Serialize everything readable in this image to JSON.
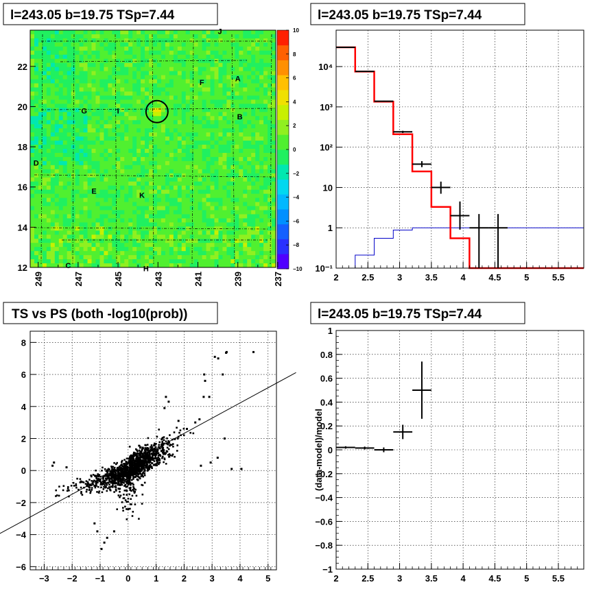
{
  "chart_data": [
    {
      "id": "skymap",
      "type": "heatmap",
      "title": "l=243.05 b=19.75 TSp=7.44",
      "x_ticks": [
        "249",
        "247",
        "245",
        "243",
        "241",
        "239",
        "237"
      ],
      "y_ticks": [
        "12",
        "14",
        "16",
        "18",
        "20",
        "22"
      ],
      "xlim": [
        249.4,
        237.1
      ],
      "ylim": [
        12,
        23.8
      ],
      "colorbar_ticks": [
        "10",
        "8",
        "6",
        "4",
        "2",
        "0",
        "−2",
        "−4",
        "−6",
        "−8",
        "−10"
      ],
      "zlim": [
        -10,
        10
      ],
      "colors": [
        "#5000ff",
        "#2a30ff",
        "#1460ff",
        "#0090ff",
        "#00b8ff",
        "#00d8f0",
        "#00e8b0",
        "#20f060",
        "#50f030",
        "#90f020",
        "#c8f000",
        "#f0e000",
        "#ffc000",
        "#ff9000",
        "#ff6000",
        "#ff2000"
      ],
      "circle": {
        "l": 243.05,
        "b": 19.75,
        "r_deg": 0.55
      },
      "sources": [
        {
          "name": "J",
          "l": 239.9,
          "b": 23.75
        },
        {
          "name": "A",
          "l": 239.0,
          "b": 21.4
        },
        {
          "name": "F",
          "l": 240.8,
          "b": 21.2
        },
        {
          "name": "G",
          "l": 246.7,
          "b": 19.8
        },
        {
          "name": "I",
          "l": 245.0,
          "b": 19.8
        },
        {
          "name": "B",
          "l": 238.9,
          "b": 19.5
        },
        {
          "name": "D",
          "l": 249.1,
          "b": 17.2
        },
        {
          "name": "E",
          "l": 246.2,
          "b": 15.8
        },
        {
          "name": "K",
          "l": 243.8,
          "b": 15.6
        },
        {
          "name": "C",
          "l": 247.5,
          "b": 12.1
        },
        {
          "name": "H",
          "l": 243.6,
          "b": 11.95
        }
      ]
    },
    {
      "id": "spectrum",
      "type": "line",
      "title": "l=243.05 b=19.75 TSp=7.44",
      "x_ticks": [
        "2",
        "2.5",
        "3",
        "3.5",
        "4",
        "4.5",
        "5",
        "5.5"
      ],
      "y_ticks": [
        "10⁻¹",
        "1",
        "10",
        "10²",
        "10³",
        "10⁴"
      ],
      "y_tick_values": [
        0.1,
        1,
        10,
        100,
        1000,
        10000
      ],
      "xlim": [
        2,
        5.9
      ],
      "ylim": [
        0.1,
        80000
      ],
      "yscale": "log",
      "edges": [
        2.0,
        2.3,
        2.6,
        2.9,
        3.2,
        3.5,
        3.8,
        4.1,
        4.4,
        4.7,
        5.0,
        5.9
      ],
      "model_red": [
        30000,
        7500,
        1350,
        210,
        25,
        3.3,
        0.55,
        0.07,
        0.01,
        0.01,
        0.01
      ],
      "model_blue": [
        0.05,
        0.21,
        0.55,
        0.88,
        1.0,
        1.0,
        1.0,
        1.0,
        1.0,
        1.0,
        1.0
      ],
      "data_points": [
        {
          "x": 2.15,
          "y": 30000,
          "ylo": 29500,
          "yhi": 30500
        },
        {
          "x": 2.45,
          "y": 7600,
          "ylo": 7450,
          "yhi": 7750
        },
        {
          "x": 2.75,
          "y": 1380,
          "ylo": 1340,
          "yhi": 1420
        },
        {
          "x": 3.05,
          "y": 240,
          "ylo": 225,
          "yhi": 255
        },
        {
          "x": 3.35,
          "y": 38,
          "ylo": 32,
          "yhi": 45
        },
        {
          "x": 3.65,
          "y": 10,
          "ylo": 7,
          "yhi": 14
        },
        {
          "x": 3.95,
          "y": 2,
          "ylo": 0.9,
          "yhi": 4.5
        },
        {
          "x": 4.25,
          "y": 1,
          "ylo": 0.1,
          "yhi": 2.2
        },
        {
          "x": 4.55,
          "y": 1,
          "ylo": 0.1,
          "yhi": 2.2
        }
      ]
    },
    {
      "id": "ts_vs_ps",
      "type": "scatter",
      "title": "TS vs PS (both -log10(prob))",
      "x_ticks": [
        "−3",
        "−2",
        "−1",
        "0",
        "1",
        "2",
        "3",
        "4",
        "5"
      ],
      "x_tick_values": [
        -3,
        -2,
        -1,
        0,
        1,
        2,
        3,
        4,
        5
      ],
      "y_ticks": [
        "−6",
        "−4",
        "−2",
        "0",
        "2",
        "4",
        "6",
        "8"
      ],
      "y_tick_values": [
        -6,
        -4,
        -2,
        0,
        2,
        4,
        6,
        8
      ],
      "xlim": [
        -3.5,
        5.3
      ],
      "ylim": [
        -6.2,
        8.7
      ],
      "fit_line": {
        "slope": 0.95,
        "intercept": 0.42
      },
      "outliers": [
        [
          4.48,
          7.4
        ],
        [
          3.52,
          7.4
        ],
        [
          3.5,
          7.35
        ],
        [
          3.1,
          7.1
        ],
        [
          3.22,
          7.0
        ],
        [
          2.75,
          5.6
        ],
        [
          2.72,
          6.0
        ],
        [
          3.38,
          6.0
        ],
        [
          2.9,
          4.6
        ],
        [
          2.7,
          4.6
        ],
        [
          2.55,
          3.2
        ],
        [
          2.4,
          3.0
        ],
        [
          1.35,
          4.6
        ],
        [
          1.45,
          4.3
        ],
        [
          1.3,
          3.9
        ],
        [
          3.45,
          2.0
        ],
        [
          3.7,
          0.1
        ],
        [
          4.05,
          0.1
        ],
        [
          3.2,
          0.8
        ],
        [
          2.95,
          0.5
        ],
        [
          2.6,
          0.3
        ],
        [
          -2.65,
          0.5
        ],
        [
          -2.7,
          0.3
        ],
        [
          -2.2,
          0.2
        ],
        [
          -1.1,
          -3.8
        ],
        [
          -0.95,
          -4.9
        ],
        [
          -0.85,
          -4.5
        ],
        [
          -0.75,
          -4.2
        ],
        [
          -1.2,
          -3.3
        ],
        [
          -0.5,
          -3.8
        ],
        [
          1.8,
          3.1
        ],
        [
          2.1,
          2.6
        ]
      ]
    },
    {
      "id": "residuals",
      "type": "scatter",
      "title": "l=243.05 b=19.75 TSp=7.44",
      "ylabel": "(data-model)/model",
      "x_ticks": [
        "2",
        "2.5",
        "3",
        "3.5",
        "4",
        "4.5",
        "5",
        "5.5"
      ],
      "y_ticks": [
        "−1",
        "−0.8",
        "−0.6",
        "−0.4",
        "−0.2",
        "0",
        "0.2",
        "0.4",
        "0.6",
        "0.8",
        "1"
      ],
      "y_tick_values": [
        -1,
        -0.8,
        -0.6,
        -0.4,
        -0.2,
        0,
        0.2,
        0.4,
        0.6,
        0.8,
        1
      ],
      "xlim": [
        2,
        5.9
      ],
      "ylim": [
        -1,
        1
      ],
      "points": [
        {
          "x": 2.15,
          "y": 0.02,
          "xerr": 0.15,
          "yerr": 0.01
        },
        {
          "x": 2.45,
          "y": 0.015,
          "xerr": 0.15,
          "yerr": 0.012
        },
        {
          "x": 2.75,
          "y": 0.0,
          "xerr": 0.15,
          "yerr": 0.02
        },
        {
          "x": 3.05,
          "y": 0.15,
          "xerr": 0.15,
          "yerr": 0.06
        },
        {
          "x": 3.35,
          "y": 0.5,
          "xerr": 0.15,
          "yerr": 0.24
        }
      ]
    }
  ]
}
